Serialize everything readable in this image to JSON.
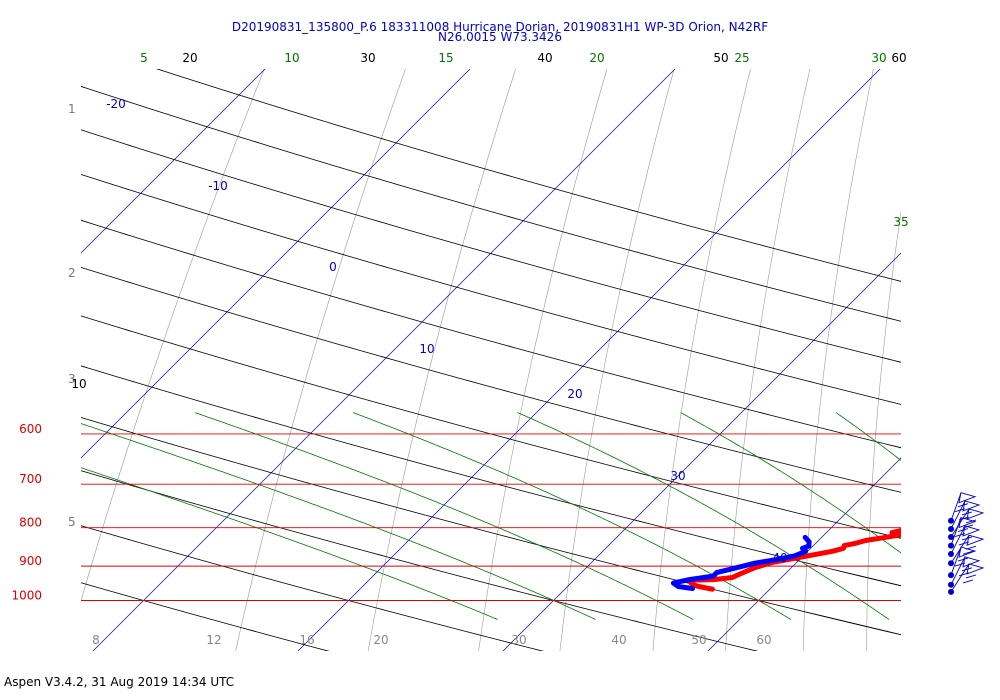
{
  "title_line1": "D20190831_135800_P.6 183311008 Hurricane Dorian, 20190831H1 WP-3D Orion, N42RF",
  "title_line2": "N26.0015 W73.3426",
  "footer": "Aspen V3.4.2, 31 Aug 2019  14:34 UTC",
  "chart_data": {
    "type": "line",
    "subtype": "skew-T log-P diagram",
    "pressure_levels": [
      {
        "p": 600,
        "label": "600"
      },
      {
        "p": 700,
        "label": "700"
      },
      {
        "p": 800,
        "label": "800"
      },
      {
        "p": 900,
        "label": "900"
      },
      {
        "p": 1000,
        "label": "1000"
      }
    ],
    "height_labels": [
      {
        "km": 1,
        "label": "1"
      },
      {
        "km": 2,
        "label": "2"
      },
      {
        "km": 3,
        "label": "3"
      },
      {
        "km": 5,
        "label": "5"
      }
    ],
    "isotherms_c": [
      -20,
      -10,
      0,
      10,
      20,
      30,
      40
    ],
    "dry_adiabats_c": [
      10,
      20,
      30,
      40,
      50,
      60
    ],
    "moist_adiabats_c": [
      5,
      10,
      15,
      20,
      25,
      30,
      35
    ],
    "mixing_ratio_labels": [
      "8",
      "12",
      "16",
      "20",
      "30",
      "40",
      "50",
      "60"
    ],
    "temperature_profile": {
      "color": "#ff0000",
      "points": [
        {
          "p": 766,
          "t": 17.0
        },
        {
          "p": 770,
          "t": 16.2
        },
        {
          "p": 775,
          "t": 15.6
        },
        {
          "p": 778,
          "t": 15.0
        },
        {
          "p": 785,
          "t": 14.8
        },
        {
          "p": 790,
          "t": 14.0
        },
        {
          "p": 795,
          "t": 13.8
        },
        {
          "p": 800,
          "t": 14.0
        },
        {
          "p": 806,
          "t": 13.6
        },
        {
          "p": 812,
          "t": 13.2
        },
        {
          "p": 818,
          "t": 13.7
        },
        {
          "p": 825,
          "t": 13.0
        },
        {
          "p": 832,
          "t": 12.3
        },
        {
          "p": 840,
          "t": 11.9
        },
        {
          "p": 845,
          "t": 11.5
        },
        {
          "p": 852,
          "t": 11.6
        },
        {
          "p": 860,
          "t": 11.2
        },
        {
          "p": 870,
          "t": 10.4
        },
        {
          "p": 880,
          "t": 9.6
        },
        {
          "p": 890,
          "t": 8.8
        },
        {
          "p": 905,
          "t": 8.2
        },
        {
          "p": 922,
          "t": 7.8
        },
        {
          "p": 932,
          "t": 7.6
        },
        {
          "p": 938,
          "t": 6.8
        },
        {
          "p": 940,
          "t": 5.6
        },
        {
          "p": 946,
          "t": 5.8
        },
        {
          "p": 952,
          "t": 6.0
        },
        {
          "p": 958,
          "t": 6.4
        },
        {
          "p": 966,
          "t": 7.2
        }
      ]
    },
    "dewpoint_profile": {
      "color": "#0000ff",
      "points": [
        {
          "p": 824,
          "t": 9.2
        },
        {
          "p": 835,
          "t": 9.6
        },
        {
          "p": 846,
          "t": 9.8
        },
        {
          "p": 852,
          "t": 9.6
        },
        {
          "p": 860,
          "t": 9.9
        },
        {
          "p": 872,
          "t": 9.6
        },
        {
          "p": 882,
          "t": 8.9
        },
        {
          "p": 892,
          "t": 8.0
        },
        {
          "p": 905,
          "t": 7.3
        },
        {
          "p": 918,
          "t": 6.6
        },
        {
          "p": 928,
          "t": 6.6
        },
        {
          "p": 938,
          "t": 5.6
        },
        {
          "p": 948,
          "t": 5.0
        },
        {
          "p": 958,
          "t": 5.4
        },
        {
          "p": 964,
          "t": 6.2
        }
      ]
    },
    "wind_barb_levels_hpa": [
      783,
      803,
      823,
      845,
      867,
      892,
      925,
      953,
      974
    ]
  }
}
